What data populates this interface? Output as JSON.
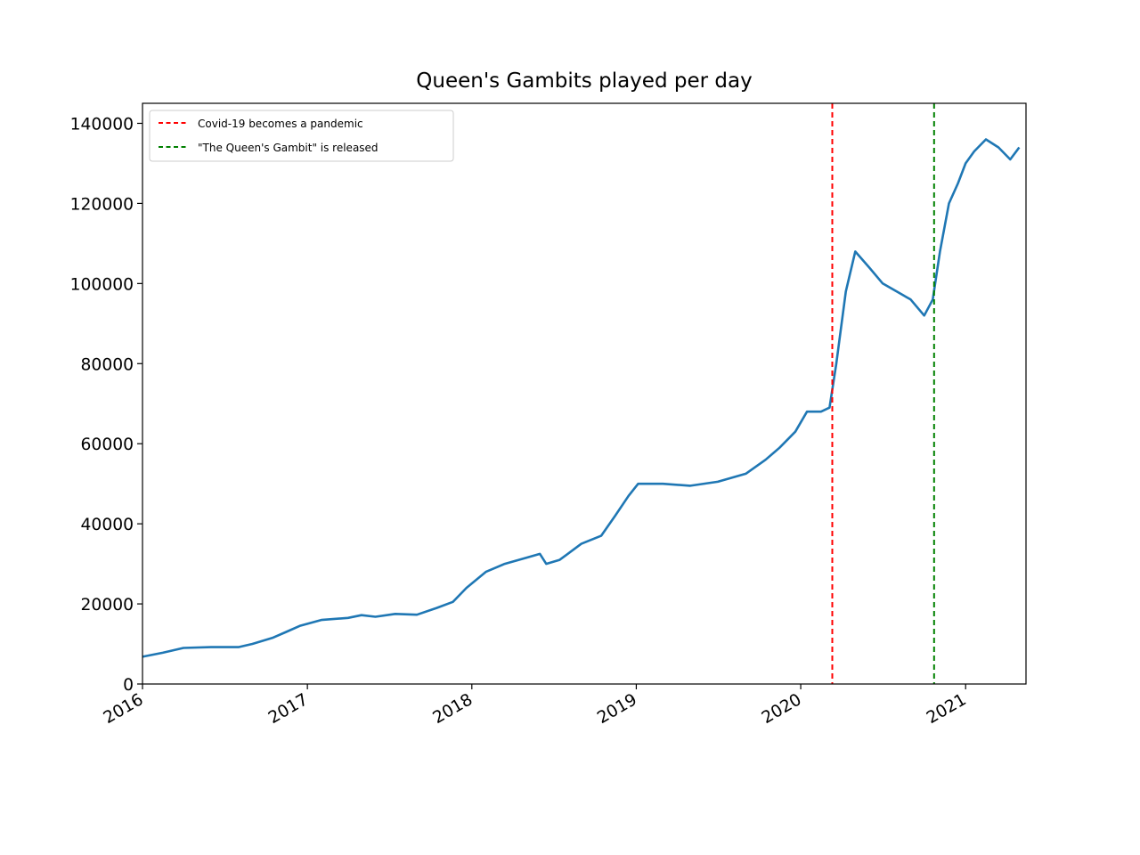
{
  "chart_data": {
    "type": "line",
    "title": "Queen's Gambits played per day",
    "xlabel": "",
    "ylabel": "",
    "xlim": [
      "2016-01-01",
      "2021-05-15"
    ],
    "ylim": [
      0,
      145000
    ],
    "x_ticks": [
      "2016",
      "2017",
      "2018",
      "2019",
      "2020",
      "2021"
    ],
    "y_ticks": [
      0,
      20000,
      40000,
      60000,
      80000,
      100000,
      120000,
      140000
    ],
    "grid": false,
    "legend_position": "top-left",
    "series": [
      {
        "color": "#1f77b4",
        "style": "solid",
        "points": [
          [
            "2016-01-01",
            6800
          ],
          [
            "2016-02-15",
            7800
          ],
          [
            "2016-04-01",
            9000
          ],
          [
            "2016-06-01",
            9200
          ],
          [
            "2016-08-01",
            9200
          ],
          [
            "2016-09-01",
            10000
          ],
          [
            "2016-10-15",
            11500
          ],
          [
            "2016-11-15",
            13000
          ],
          [
            "2016-12-15",
            14500
          ],
          [
            "2017-02-01",
            16000
          ],
          [
            "2017-04-01",
            16500
          ],
          [
            "2017-05-01",
            17200
          ],
          [
            "2017-06-01",
            16800
          ],
          [
            "2017-07-15",
            17500
          ],
          [
            "2017-09-01",
            17300
          ],
          [
            "2017-10-15",
            19000
          ],
          [
            "2017-11-20",
            20500
          ],
          [
            "2017-12-20",
            24000
          ],
          [
            "2018-02-01",
            28000
          ],
          [
            "2018-03-15",
            30000
          ],
          [
            "2018-05-01",
            31500
          ],
          [
            "2018-06-01",
            32500
          ],
          [
            "2018-06-15",
            30000
          ],
          [
            "2018-07-15",
            31000
          ],
          [
            "2018-09-01",
            35000
          ],
          [
            "2018-10-15",
            37000
          ],
          [
            "2018-11-15",
            42000
          ],
          [
            "2018-12-15",
            47000
          ],
          [
            "2019-01-05",
            50000
          ],
          [
            "2019-03-01",
            50000
          ],
          [
            "2019-05-01",
            49500
          ],
          [
            "2019-07-01",
            50500
          ],
          [
            "2019-09-01",
            52500
          ],
          [
            "2019-10-15",
            56000
          ],
          [
            "2019-11-15",
            59000
          ],
          [
            "2019-12-20",
            63000
          ],
          [
            "2020-01-15",
            68000
          ],
          [
            "2020-02-15",
            68000
          ],
          [
            "2020-03-05",
            69000
          ],
          [
            "2020-03-20",
            80000
          ],
          [
            "2020-04-10",
            98000
          ],
          [
            "2020-05-01",
            108000
          ],
          [
            "2020-06-01",
            104000
          ],
          [
            "2020-07-01",
            100000
          ],
          [
            "2020-08-01",
            98000
          ],
          [
            "2020-09-01",
            96000
          ],
          [
            "2020-10-01",
            92000
          ],
          [
            "2020-10-20",
            96000
          ],
          [
            "2020-11-05",
            108000
          ],
          [
            "2020-11-25",
            120000
          ],
          [
            "2020-12-15",
            125000
          ],
          [
            "2021-01-01",
            130000
          ],
          [
            "2021-01-20",
            133000
          ],
          [
            "2021-02-15",
            136000
          ],
          [
            "2021-03-15",
            134000
          ],
          [
            "2021-04-10",
            131000
          ],
          [
            "2021-04-30",
            134000
          ]
        ]
      }
    ],
    "vlines": [
      {
        "x": "2020-03-11",
        "color": "#ff0000",
        "style": "dashed"
      },
      {
        "x": "2020-10-23",
        "color": "#008000",
        "style": "dashed"
      }
    ],
    "legend": [
      {
        "label": "Covid-19 becomes a pandemic",
        "color": "#ff0000",
        "style": "dashed"
      },
      {
        "label": "\"The Queen's Gambit\" is released",
        "color": "#008000",
        "style": "dashed"
      }
    ]
  }
}
